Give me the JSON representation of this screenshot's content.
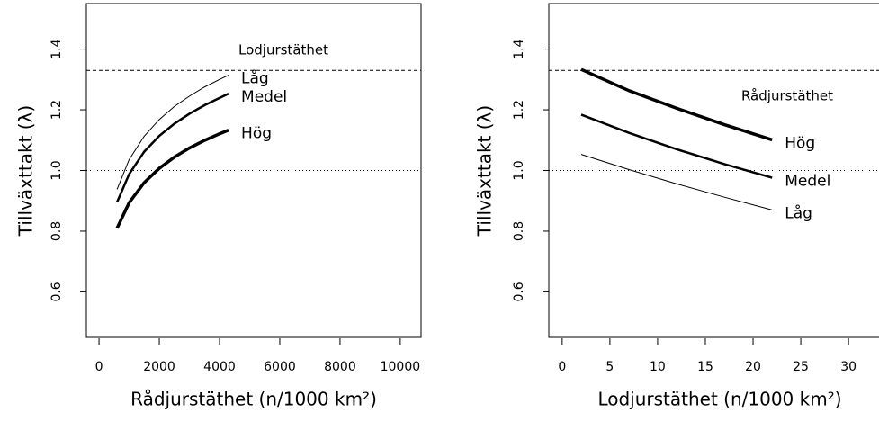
{
  "chart_data": [
    {
      "type": "line",
      "xlabel": "Rådjurstäthet (n/1000 km²)",
      "ylabel": "Tillväxttakt (λ)",
      "annotation": "Lodjurstäthet",
      "x": [
        600,
        1000,
        1500,
        2000,
        2500,
        3000,
        3500,
        4000,
        4300
      ],
      "series": [
        {
          "name": "Låg",
          "color": "#000000",
          "linewidth": 1,
          "values": [
            0.938,
            1.036,
            1.113,
            1.168,
            1.211,
            1.245,
            1.275,
            1.3,
            1.314
          ]
        },
        {
          "name": "Medel",
          "color": "#000000",
          "linewidth": 2.5,
          "values": [
            0.896,
            0.988,
            1.062,
            1.114,
            1.154,
            1.187,
            1.215,
            1.239,
            1.253
          ]
        },
        {
          "name": "Hög",
          "color": "#000000",
          "linewidth": 3.5,
          "values": [
            0.81,
            0.894,
            0.96,
            1.007,
            1.044,
            1.074,
            1.099,
            1.121,
            1.133
          ]
        }
      ],
      "hlines": [
        {
          "value": 1.33,
          "style": "dashed"
        },
        {
          "value": 1,
          "style": "dotted"
        }
      ],
      "xlim": [
        -420,
        10690
      ],
      "xticks": [
        0,
        2000,
        4000,
        6000,
        8000,
        10000
      ],
      "ylim": [
        0.45,
        1.55
      ],
      "yticks": [
        0.6,
        0.8,
        {
          "value": 1,
          "label": "1.0"
        },
        1.2,
        1.4
      ]
    },
    {
      "type": "line",
      "xlabel": "Lodjurstäthet (n/1000 km²)",
      "ylabel": "Tillväxttakt (λ)",
      "annotation": "Rådjurstäthet",
      "x": [
        2,
        7,
        12,
        17,
        22
      ],
      "series": [
        {
          "name": "Hög",
          "color": "#000000",
          "linewidth": 3.5,
          "values": [
            1.333,
            1.263,
            1.205,
            1.151,
            1.101
          ]
        },
        {
          "name": "Medel",
          "color": "#000000",
          "linewidth": 2.5,
          "values": [
            1.184,
            1.124,
            1.07,
            1.021,
            0.976
          ]
        },
        {
          "name": "Låg",
          "color": "#000000",
          "linewidth": 1,
          "values": [
            1.053,
            1.003,
            0.956,
            0.912,
            0.87
          ]
        }
      ],
      "hlines": [
        {
          "value": 1.33,
          "style": "dashed"
        },
        {
          "value": 1,
          "style": "dotted"
        }
      ],
      "xlim": [
        -1.4,
        36.4
      ],
      "xticks": [
        0,
        5,
        10,
        15,
        20,
        25,
        30
      ],
      "ylim": [
        0.45,
        1.55
      ],
      "yticks": [
        0.6,
        0.8,
        {
          "value": 1,
          "label": "1.0"
        },
        1.2,
        1.4
      ]
    }
  ]
}
